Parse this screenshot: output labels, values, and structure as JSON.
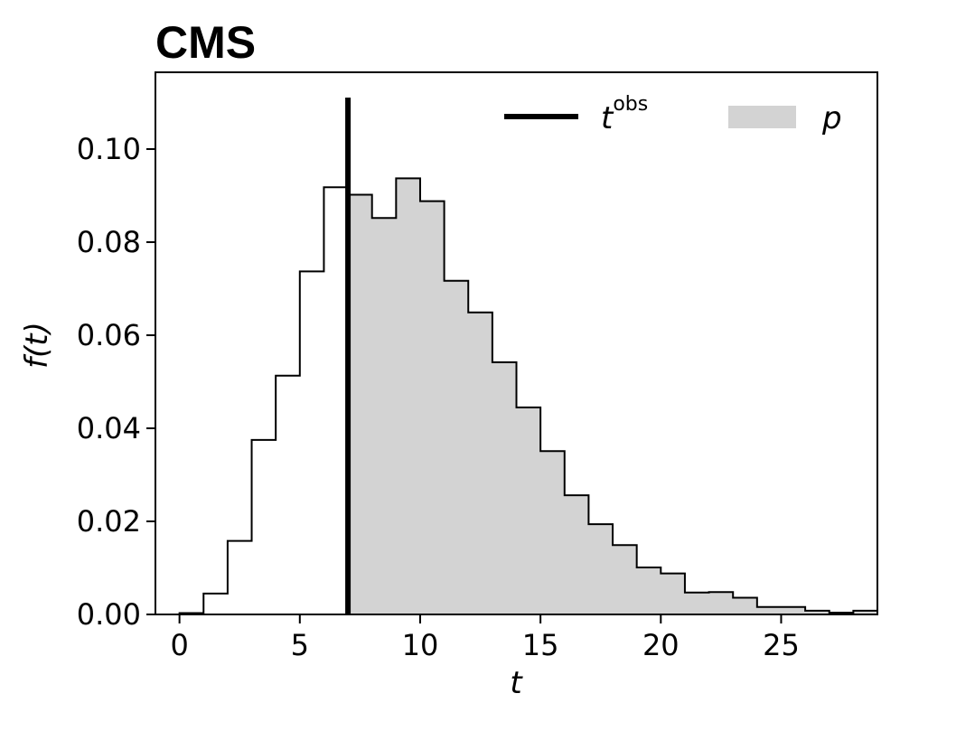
{
  "brand": "CMS",
  "chart_data": {
    "type": "histogram",
    "xlabel": "t",
    "ylabel": "f(t)",
    "xlim": [
      -1,
      29
    ],
    "ylim": [
      0,
      0.1165
    ],
    "x_ticks": [
      0,
      5,
      10,
      15,
      20,
      25
    ],
    "x_tick_labels": [
      "0",
      "5",
      "10",
      "15",
      "20",
      "25"
    ],
    "y_ticks": [
      0.0,
      0.02,
      0.04,
      0.06,
      0.08,
      0.1
    ],
    "y_tick_labels": [
      "0.00",
      "0.02",
      "0.04",
      "0.06",
      "0.08",
      "0.10"
    ],
    "bin_edges": [
      0,
      1,
      2,
      3,
      4,
      5,
      6,
      7,
      8,
      9,
      10,
      11,
      12,
      13,
      14,
      15,
      16,
      17,
      18,
      19,
      20,
      21,
      22,
      23,
      24,
      25,
      26,
      27,
      28,
      29
    ],
    "values": [
      0.0003,
      0.0045,
      0.0158,
      0.0375,
      0.0513,
      0.0737,
      0.0918,
      0.0902,
      0.0852,
      0.0937,
      0.0888,
      0.0717,
      0.0649,
      0.0542,
      0.0445,
      0.0351,
      0.0256,
      0.0194,
      0.0149,
      0.0101,
      0.0088,
      0.0047,
      0.0048,
      0.0036,
      0.0016,
      0.0016,
      0.0008,
      0.0004,
      0.0008
    ],
    "t_obs": 7.0,
    "shade_from": 7.0,
    "shade_color": "#d3d3d3",
    "line_color": "#000000",
    "grid": false,
    "legend": {
      "position": "top-right",
      "entries": [
        {
          "label": "t",
          "superscript": "obs",
          "kind": "line"
        },
        {
          "label": "p",
          "superscript": "",
          "kind": "patch"
        }
      ]
    }
  }
}
